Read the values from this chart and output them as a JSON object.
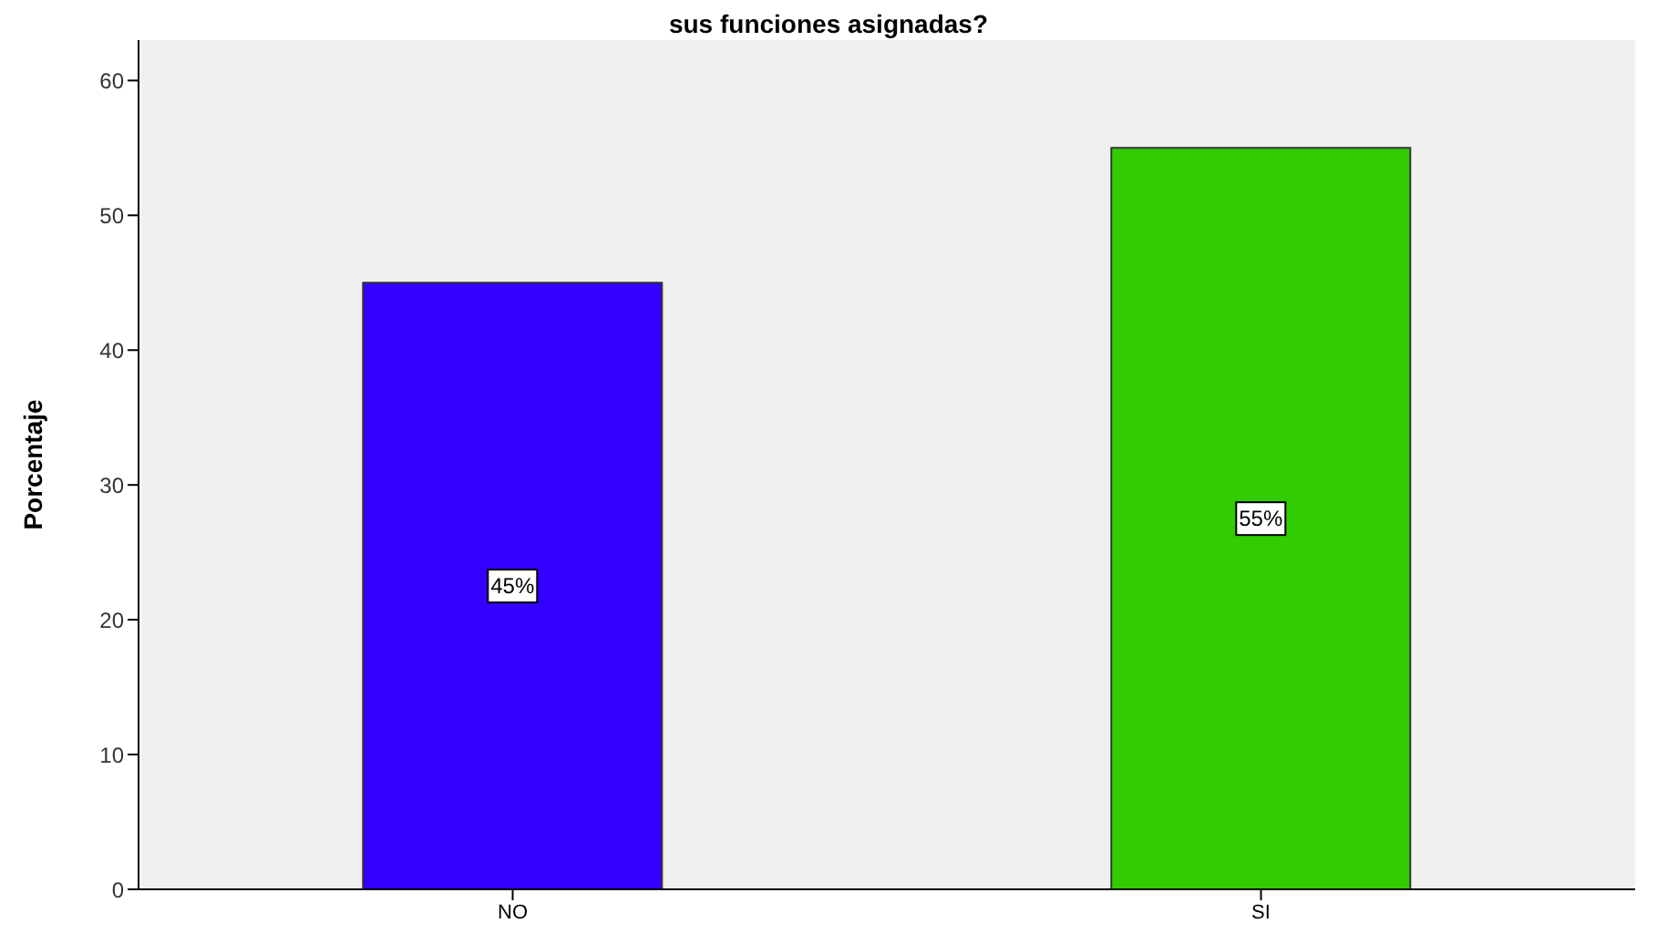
{
  "chart_data": {
    "type": "bar",
    "title": "sus funciones asignadas?",
    "ylabel": "Porcentaje",
    "categories": [
      "NO",
      "SI"
    ],
    "values": [
      45,
      55
    ],
    "colors": [
      "#3300ff",
      "#33cc00"
    ],
    "value_labels": [
      "45%",
      "55%"
    ],
    "ylim": [
      0,
      63
    ],
    "yticks": [
      0,
      10,
      20,
      30,
      40,
      50,
      60
    ],
    "grid": false,
    "legend": false
  }
}
